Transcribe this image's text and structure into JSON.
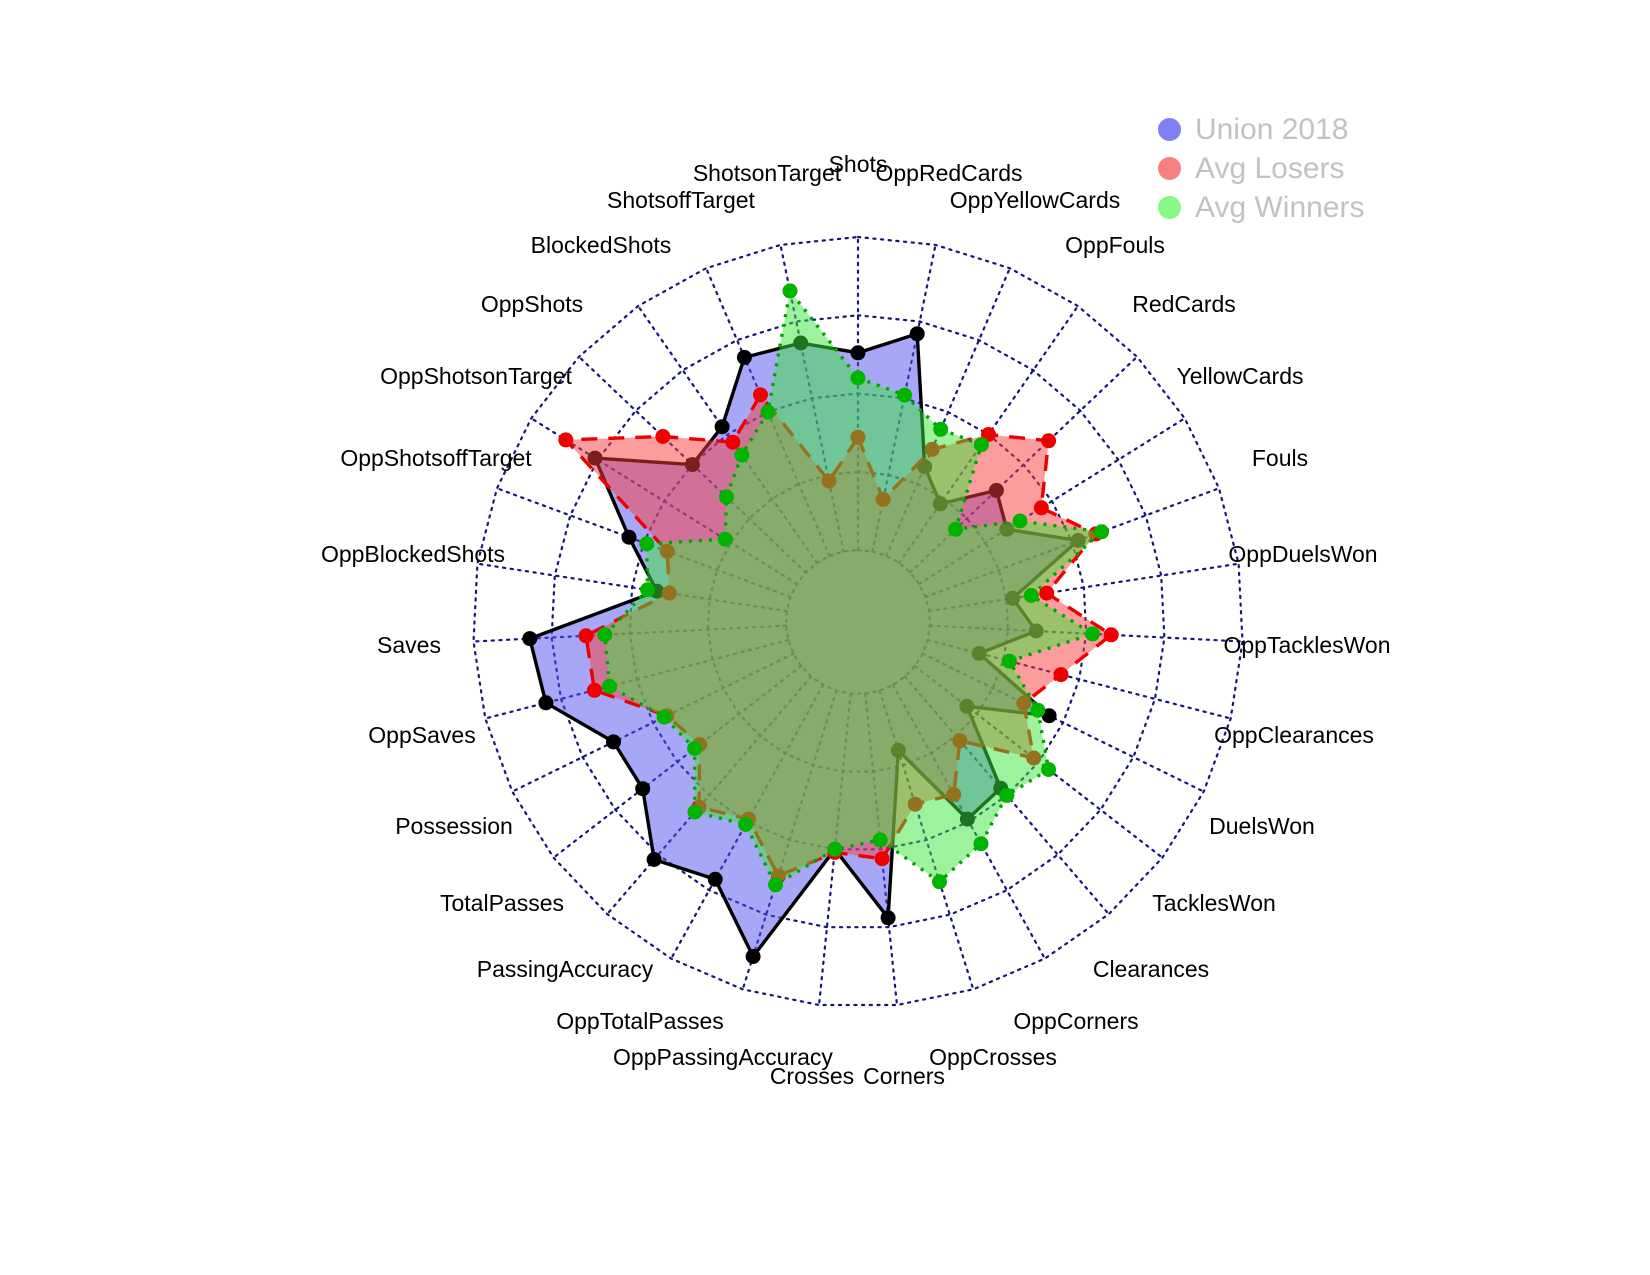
{
  "chart_data": {
    "type": "radar",
    "title": "",
    "categories": [
      "Shots",
      "OppRedCards",
      "OppYellowCards",
      "OppFouls",
      "RedCards",
      "YellowCards",
      "Fouls",
      "OppDuelsWon",
      "OppTacklesWon",
      "OppClearances",
      "DuelsWon",
      "TacklesWon",
      "Clearances",
      "OppCorners",
      "OppCrosses",
      "Corners",
      "Crosses",
      "OppPassingAccuracy",
      "OppTotalPasses",
      "PassingAccuracy",
      "TotalPasses",
      "Possession",
      "OppSaves",
      "Saves",
      "OppBlockedShots",
      "OppShotsoffTarget",
      "OppShotsonTarget",
      "OppShots",
      "BlockedShots",
      "ShotsoffTarget",
      "ShotsonTarget"
    ],
    "series": [
      {
        "name": "Union 2018",
        "values": [
          0.63,
          0.71,
          0.31,
          0.23,
          0.38,
          0.33,
          0.52,
          0.27,
          0.34,
          0.17,
          0.45,
          0.21,
          0.47,
          0.49,
          0.2,
          0.72,
          0.5,
          0.89,
          0.71,
          0.77,
          0.64,
          0.64,
          0.8,
          0.82,
          0.42,
          0.55,
          0.76,
          0.5,
          0.53,
          0.69,
          0.68
        ],
        "fill": "#5050f0",
        "fill_opacity": 0.5,
        "line_color": "#000000",
        "line_style": "solid",
        "point_color": "#000000"
      },
      {
        "name": "Avg Losers",
        "values": [
          0.36,
          0.17,
          0.37,
          0.5,
          0.61,
          0.46,
          0.58,
          0.38,
          0.58,
          0.44,
          0.36,
          0.48,
          0.27,
          0.4,
          0.38,
          0.53,
          0.51,
          0.62,
          0.49,
          0.55,
          0.41,
          0.45,
          0.64,
          0.64,
          0.38,
          0.42,
          0.87,
          0.63,
          0.47,
          0.56,
          0.23
        ],
        "fill": "#fa3c3c",
        "fill_opacity": 0.5,
        "line_color": "#ee0000",
        "line_style": "dashed",
        "point_color": "#ee0000"
      },
      {
        "name": "Avg Winners",
        "values": [
          0.55,
          0.51,
          0.44,
          0.46,
          0.2,
          0.38,
          0.6,
          0.33,
          0.52,
          0.27,
          0.41,
          0.54,
          0.5,
          0.58,
          0.64,
          0.47,
          0.5,
          0.65,
          0.51,
          0.57,
          0.43,
          0.46,
          0.59,
          0.58,
          0.45,
          0.49,
          0.27,
          0.35,
          0.42,
          0.5,
          0.85
        ],
        "fill": "#3ce63c",
        "fill_opacity": 0.5,
        "line_color": "#00a200",
        "line_style": "dotted",
        "point_color": "#00b400"
      }
    ],
    "ring_segments": 4,
    "grid_color": "#16167a",
    "axis_label_color": "#000000",
    "legend_position": "top-right",
    "values_note": "values are fractions of the outer grid ring; the chart displays no numeric tick labels"
  },
  "legend": {
    "text_color": "#c2c2c2",
    "items": [
      {
        "label": "Union 2018",
        "color": "#8080f5"
      },
      {
        "label": "Avg Losers",
        "color": "#f98080"
      },
      {
        "label": "Avg Winners",
        "color": "#86f986"
      }
    ]
  }
}
